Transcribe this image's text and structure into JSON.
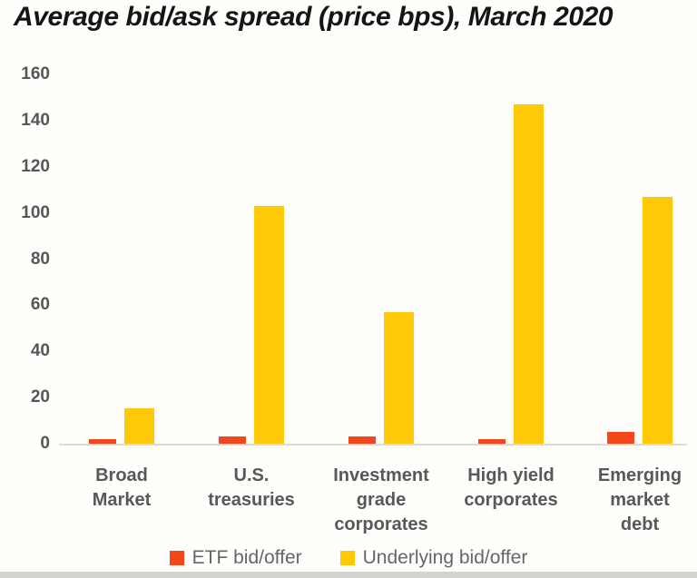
{
  "title": "Average bid/ask spread (price bps), March 2020",
  "colors": {
    "etf": "#F4481C",
    "underlying": "#FFC907",
    "axis_line": "#DBDAD7",
    "tick_label": "#54565A",
    "category_label": "#56585C",
    "legend_text": "#63666B",
    "title_text": "#141519",
    "bottom_strip": "#D5D3D0",
    "background": "#FFFEFA"
  },
  "chart_data": {
    "type": "bar",
    "title": "Average bid/ask spread (price bps), March 2020",
    "categories": [
      "Broad Market",
      "U.S. treasuries",
      "Investment grade corporates",
      "High yield corporates",
      "Emerging market debt"
    ],
    "category_label_lines": [
      [
        "Broad",
        "Market"
      ],
      [
        "U.S.",
        "treasuries"
      ],
      [
        "Investment",
        "grade",
        "corporates"
      ],
      [
        "High yield",
        "corporates"
      ],
      [
        "Emerging",
        "market",
        "debt"
      ]
    ],
    "series": [
      {
        "name": "ETF bid/offer",
        "color": "#F4481C",
        "values": [
          2,
          3,
          3,
          2,
          5
        ]
      },
      {
        "name": "Underlying bid/offer",
        "color": "#FFC907",
        "values": [
          15.5,
          103,
          57,
          147,
          107
        ]
      }
    ],
    "xlabel": "",
    "ylabel": "",
    "ylim": [
      0,
      160
    ],
    "yticks": [
      0,
      20,
      40,
      60,
      80,
      100,
      120,
      140,
      160
    ],
    "grid": false,
    "legend_position": "bottom"
  }
}
